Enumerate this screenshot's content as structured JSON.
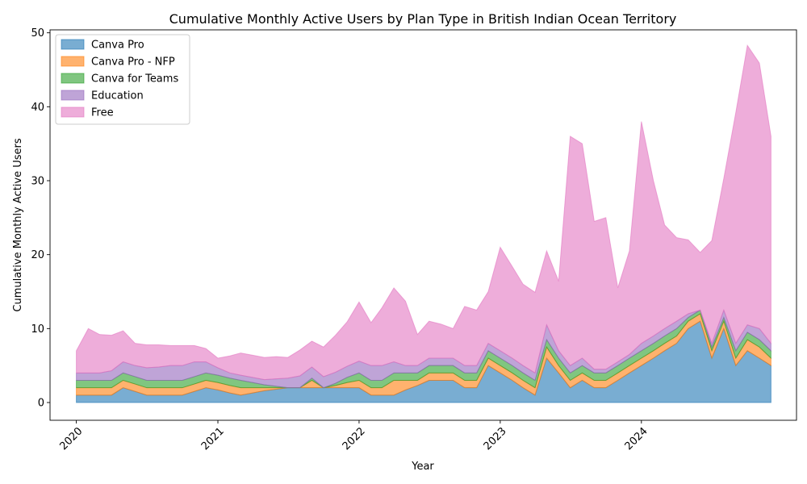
{
  "chart_data": {
    "type": "area",
    "stacked": true,
    "title": "Cumulative Monthly Active Users by Plan Type in British Indian Ocean Territory",
    "xlabel": "Year",
    "ylabel": "Cumulative Monthly Active Users",
    "xlim": [
      "2019-10-25",
      "2025-02-05"
    ],
    "ylim": [
      -2.4,
      50.4
    ],
    "yticks": [
      0,
      10,
      20,
      30,
      40,
      50
    ],
    "xticks": [
      {
        "date": "2020-01-01",
        "label": "2020"
      },
      {
        "date": "2021-01-01",
        "label": "2021"
      },
      {
        "date": "2022-01-01",
        "label": "2022"
      },
      {
        "date": "2023-01-01",
        "label": "2023"
      },
      {
        "date": "2024-01-01",
        "label": "2024"
      }
    ],
    "grid": false,
    "legend_position": "top-left",
    "dates": [
      "2020-01-01",
      "2020-02-01",
      "2020-03-01",
      "2020-04-01",
      "2020-05-01",
      "2020-06-01",
      "2020-07-01",
      "2020-08-01",
      "2020-09-01",
      "2020-10-01",
      "2020-11-01",
      "2020-12-01",
      "2021-01-01",
      "2021-02-01",
      "2021-03-01",
      "2021-04-01",
      "2021-05-01",
      "2021-06-01",
      "2021-07-01",
      "2021-08-01",
      "2021-09-01",
      "2021-10-01",
      "2021-11-01",
      "2021-12-01",
      "2022-01-01",
      "2022-02-01",
      "2022-03-01",
      "2022-04-01",
      "2022-05-01",
      "2022-06-01",
      "2022-07-01",
      "2022-08-01",
      "2022-09-01",
      "2022-10-01",
      "2022-11-01",
      "2022-12-01",
      "2023-01-01",
      "2023-02-01",
      "2023-03-01",
      "2023-04-01",
      "2023-05-01",
      "2023-06-01",
      "2023-07-01",
      "2023-08-01",
      "2023-09-01",
      "2023-10-01",
      "2023-11-01",
      "2023-12-01",
      "2024-01-01",
      "2024-02-01",
      "2024-03-01",
      "2024-04-01",
      "2024-05-01",
      "2024-06-01",
      "2024-07-01",
      "2024-08-01",
      "2024-09-01",
      "2024-10-01",
      "2024-11-01",
      "2024-12-01"
    ],
    "series": [
      {
        "name": "Canva Pro",
        "color": "#1f77b4",
        "values": [
          1,
          1,
          1,
          1,
          2,
          1.5,
          1,
          1,
          1,
          1,
          1.5,
          2,
          1.7,
          1.3,
          1,
          1.3,
          1.6,
          1.8,
          2,
          2,
          2,
          2,
          2,
          2,
          2,
          1,
          1,
          1,
          1.7,
          2.3,
          3,
          3,
          3,
          2,
          2,
          5,
          4,
          3,
          2,
          1,
          6,
          4,
          2,
          3,
          2,
          2,
          3,
          4,
          5,
          6,
          7,
          8,
          10,
          11,
          6,
          10,
          5,
          7,
          6,
          5
        ]
      },
      {
        "name": "Canva Pro - NFP",
        "color": "#ff7f0e",
        "values": [
          1,
          1,
          1,
          1,
          1,
          1,
          1,
          1,
          1,
          1,
          1,
          1,
          1,
          1,
          1,
          0.7,
          0.4,
          0.2,
          0,
          0,
          1,
          0,
          0.3,
          0.7,
          1,
          1,
          1,
          2,
          1.3,
          0.7,
          1,
          1,
          1,
          1,
          1,
          1,
          1,
          1,
          1,
          1,
          1.5,
          1,
          1,
          1,
          1,
          1,
          1,
          1,
          1,
          1,
          1,
          1,
          1,
          1,
          1,
          1,
          1,
          1.5,
          1.5,
          1
        ]
      },
      {
        "name": "Canva for Teams",
        "color": "#2ca02c",
        "values": [
          1,
          1,
          1,
          1,
          1,
          1,
          1,
          1,
          1,
          1,
          1,
          1,
          1,
          1,
          1,
          0.7,
          0.4,
          0.2,
          0,
          0,
          0.3,
          0,
          0.3,
          0.7,
          1,
          1,
          1,
          1,
          1,
          1,
          1,
          1,
          1,
          1,
          1,
          1,
          1,
          1,
          1,
          1,
          1,
          1,
          1,
          1,
          1,
          1,
          1,
          1,
          1,
          1,
          1,
          1,
          0.5,
          0.5,
          0.5,
          0.5,
          1,
          1,
          1,
          1
        ]
      },
      {
        "name": "Education",
        "color": "#9467bd",
        "values": [
          1,
          1,
          1,
          1.3,
          1.5,
          1.5,
          1.7,
          1.8,
          2,
          2,
          2,
          1.5,
          1,
          0.7,
          0.7,
          0.7,
          0.7,
          1,
          1.3,
          1.6,
          1.5,
          1.5,
          1.5,
          1.5,
          1.6,
          2,
          2,
          1.5,
          1,
          1,
          1,
          1,
          1,
          1,
          1,
          1,
          1,
          1,
          1,
          1,
          2,
          1,
          1,
          1,
          0.5,
          0.5,
          0.5,
          0.5,
          1,
          1,
          1,
          1,
          0.5,
          0,
          0.5,
          1,
          1,
          1,
          1.5,
          1
        ]
      },
      {
        "name": "Free",
        "color": "#e377c2",
        "values": [
          3,
          6,
          5.2,
          4.8,
          4.2,
          3,
          3.1,
          3,
          2.7,
          2.7,
          2.2,
          1.8,
          1.3,
          2.3,
          3,
          3,
          3,
          3,
          2.8,
          3.5,
          3.5,
          4,
          5,
          6,
          8,
          5.8,
          7.8,
          10,
          8.7,
          4.2,
          5,
          4.6,
          4,
          8,
          7.5,
          7,
          14,
          12.4,
          11,
          10.9,
          10,
          9.4,
          31,
          29,
          20,
          20.5,
          10,
          14,
          30,
          21,
          14,
          11.3,
          10,
          7.8,
          13.9,
          17.8,
          31.2,
          37.8,
          35.9,
          28
        ]
      }
    ]
  }
}
